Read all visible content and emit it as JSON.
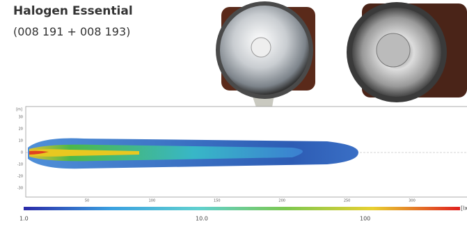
{
  "header": {
    "title": "Halogen Essential",
    "subtitle": "(008 191 + 008 193)"
  },
  "plot": {
    "y_unit": "[m]",
    "yticks": [
      "30",
      "20",
      "10",
      "0",
      "-10",
      "-20",
      "-30"
    ],
    "xticks": [
      "50",
      "100",
      "150",
      "200",
      "250",
      "300"
    ]
  },
  "scale": {
    "labels": [
      "1.0",
      "10.0",
      "100"
    ],
    "unit": "[lx]"
  }
}
